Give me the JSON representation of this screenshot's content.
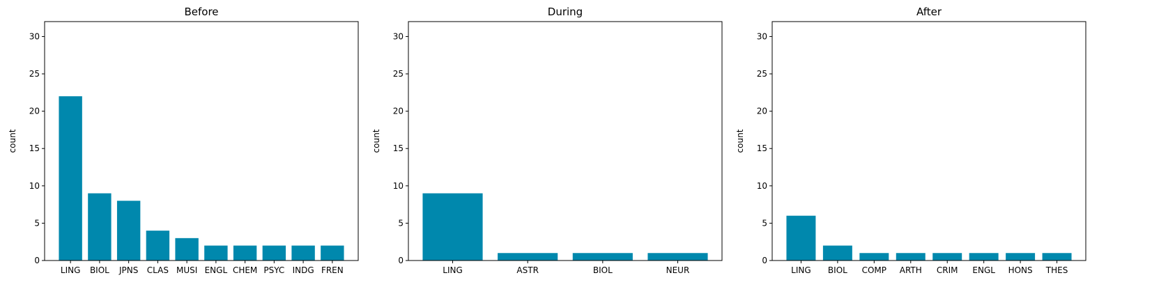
{
  "chart_data": [
    {
      "type": "bar",
      "title": "Before",
      "xlabel": "",
      "ylabel": "count",
      "ylim": [
        0,
        32
      ],
      "yticks": [
        0,
        5,
        10,
        15,
        20,
        25,
        30
      ],
      "categories": [
        "LING",
        "BIOL",
        "JPNS",
        "CLAS",
        "MUSI",
        "ENGL",
        "CHEM",
        "PSYC",
        "INDG",
        "FREN"
      ],
      "values": [
        22,
        9,
        8,
        4,
        3,
        2,
        2,
        2,
        2,
        2
      ],
      "color": "#0088ad"
    },
    {
      "type": "bar",
      "title": "During",
      "xlabel": "",
      "ylabel": "count",
      "ylim": [
        0,
        32
      ],
      "yticks": [
        0,
        5,
        10,
        15,
        20,
        25,
        30
      ],
      "categories": [
        "LING",
        "ASTR",
        "BIOL",
        "NEUR"
      ],
      "values": [
        9,
        1,
        1,
        1
      ],
      "color": "#0088ad"
    },
    {
      "type": "bar",
      "title": "After",
      "xlabel": "",
      "ylabel": "count",
      "ylim": [
        0,
        32
      ],
      "yticks": [
        0,
        5,
        10,
        15,
        20,
        25,
        30
      ],
      "categories": [
        "LING",
        "BIOL",
        "COMP",
        "ARTH",
        "CRIM",
        "ENGL",
        "HONS",
        "THES"
      ],
      "values": [
        6,
        2,
        1,
        1,
        1,
        1,
        1,
        1
      ],
      "color": "#0088ad"
    }
  ]
}
